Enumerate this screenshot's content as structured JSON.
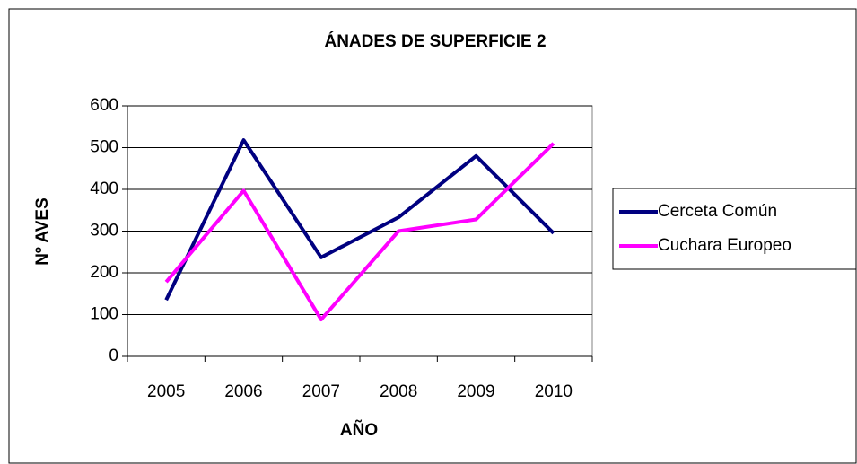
{
  "chart_data": {
    "type": "line",
    "title": "ÁNADES DE SUPERFICIE 2",
    "x_label": "AÑO",
    "y_label": "Nº AVES",
    "categories": [
      "2005",
      "2006",
      "2007",
      "2008",
      "2009",
      "2010"
    ],
    "series": [
      {
        "name": "Cerceta Común",
        "color": "#000080",
        "values": [
          135,
          518,
          237,
          333,
          480,
          295
        ]
      },
      {
        "name": "Cuchara Europeo",
        "color": "#ff00ff",
        "values": [
          178,
          397,
          88,
          300,
          328,
          510
        ]
      }
    ],
    "ylim": [
      0,
      600
    ],
    "yticks": [
      0,
      100,
      200,
      300,
      400,
      500,
      600
    ],
    "grid": true,
    "legend": "right"
  }
}
